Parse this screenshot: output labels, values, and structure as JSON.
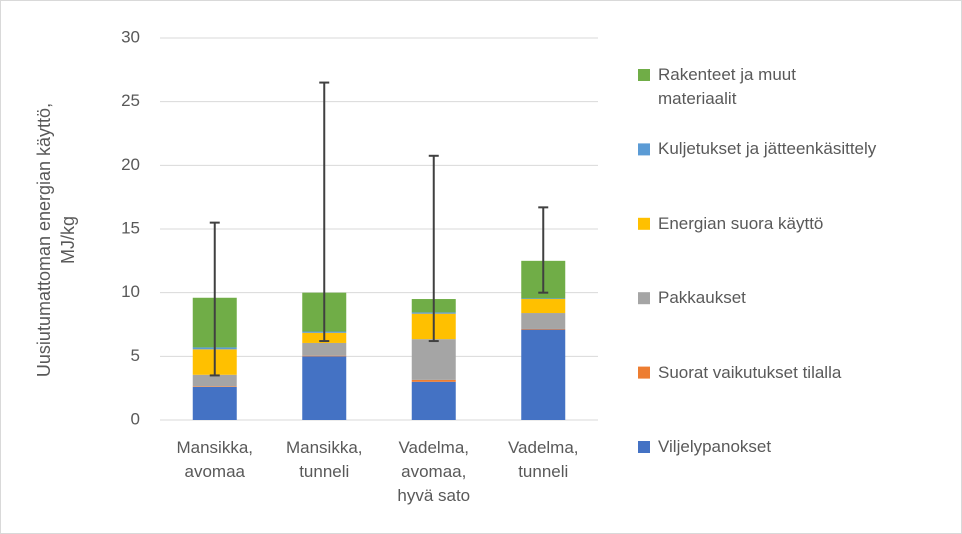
{
  "chart_data": {
    "type": "stacked_bar",
    "ylabel": "Uusiutumattoman energian käyttö,\nMJ/kg",
    "categories": [
      "Mansikka,\navomaa",
      "Mansikka,\ntunneli",
      "Vadelma,\navomaa,\nhyvä sato",
      "Vadelma,\ntunneli"
    ],
    "series": [
      {
        "name": "Viljelypanokset",
        "color": "#4472c4",
        "values": [
          2.6,
          5.0,
          3.0,
          7.1
        ]
      },
      {
        "name": "Suorat vaikutukset tilalla",
        "color": "#ed7d31",
        "values": [
          0.05,
          0.05,
          0.15,
          0.05
        ]
      },
      {
        "name": "Pakkaukset",
        "color": "#a5a5a5",
        "values": [
          0.9,
          1.0,
          3.2,
          1.25
        ]
      },
      {
        "name": "Energian suora käyttö",
        "color": "#ffc000",
        "values": [
          2.0,
          0.8,
          2.0,
          1.1
        ]
      },
      {
        "name": "Kuljetukset ja jätteenkäsittely",
        "color": "#5b9bd5",
        "values": [
          0.15,
          0.1,
          0.1,
          0.05
        ]
      },
      {
        "name": "Rakenteet ja muut materiaalit",
        "color": "#70ad47",
        "values": [
          3.9,
          3.05,
          1.05,
          2.95
        ]
      }
    ],
    "error_minus": [
      6.1,
      3.8,
      3.3,
      2.5
    ],
    "error_plus": [
      5.9,
      16.5,
      11.25,
      4.2
    ],
    "error_color": "#404040",
    "ylim": [
      0,
      30
    ],
    "yticks": [
      0,
      5,
      10,
      15,
      20,
      25,
      30
    ],
    "grid": true,
    "legend": "right"
  }
}
